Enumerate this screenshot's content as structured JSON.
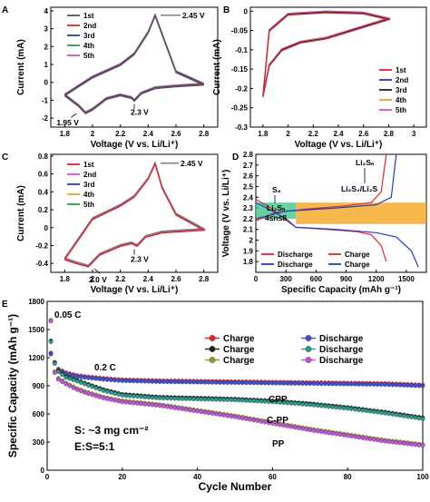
{
  "chart_data": [
    {
      "panel": "A",
      "type": "line",
      "xlabel": "Voltage (V vs. Li/Li⁺)",
      "ylabel": "Current (mA)",
      "xlim": [
        1.7,
        2.9
      ],
      "ylim": [
        -2.5,
        4.2
      ],
      "xticks": [
        1.8,
        2.0,
        2.2,
        2.4,
        2.6,
        2.8
      ],
      "yticks": [
        -2,
        -1,
        0,
        1,
        2,
        3,
        4
      ],
      "legend": [
        "1st",
        "2nd",
        "3rd",
        "4th",
        "5th"
      ],
      "colors": [
        "#555555",
        "#e8212b",
        "#1f3fbf",
        "#2a9d4a",
        "#d94fd9"
      ],
      "annotations": [
        {
          "text": "2.45 V",
          "x": 2.45,
          "y": 3.75
        },
        {
          "text": "1.95 V",
          "x": 1.95,
          "y": -1.7
        },
        {
          "text": "2.3 V",
          "x": 2.3,
          "y": -1.0
        }
      ],
      "cycle": [
        [
          1.8,
          -0.7
        ],
        [
          1.9,
          -1.3
        ],
        [
          1.95,
          -1.7
        ],
        [
          2.0,
          -1.5
        ],
        [
          2.1,
          -0.9
        ],
        [
          2.2,
          -0.7
        ],
        [
          2.28,
          -0.85
        ],
        [
          2.3,
          -1.0
        ],
        [
          2.35,
          -0.6
        ],
        [
          2.45,
          -0.3
        ],
        [
          2.6,
          -0.2
        ],
        [
          2.8,
          -0.1
        ],
        [
          2.6,
          0.6
        ],
        [
          2.5,
          2.7
        ],
        [
          2.45,
          3.75
        ],
        [
          2.4,
          2.8
        ],
        [
          2.3,
          1.6
        ],
        [
          2.2,
          1.0
        ],
        [
          2.0,
          0.3
        ],
        [
          1.8,
          -0.7
        ]
      ]
    },
    {
      "panel": "B",
      "type": "line",
      "xlabel": "Voltage (V vs. Li/Li⁺)",
      "ylabel": "Current (mA)",
      "xlim": [
        1.7,
        3.1
      ],
      "ylim": [
        -0.3,
        0.01
      ],
      "xticks": [
        1.8,
        2.0,
        2.2,
        2.4,
        2.6,
        2.8,
        3.0
      ],
      "yticks": [
        0.0,
        -0.05,
        -0.1,
        -0.15,
        -0.2,
        -0.25,
        -0.3
      ],
      "legend": [
        "1st",
        "2nd",
        "3rd",
        "4th",
        "5th"
      ],
      "colors": [
        "#e8212b",
        "#1f3fbf",
        "#222222",
        "#f0a020",
        "#d94fd9"
      ],
      "cycle": [
        [
          1.8,
          -0.22
        ],
        [
          1.85,
          -0.14
        ],
        [
          1.95,
          -0.1
        ],
        [
          2.1,
          -0.08
        ],
        [
          2.3,
          -0.07
        ],
        [
          2.5,
          -0.05
        ],
        [
          2.7,
          -0.03
        ],
        [
          2.8,
          -0.02
        ],
        [
          2.6,
          -0.005
        ],
        [
          2.3,
          -0.002
        ],
        [
          2.0,
          -0.008
        ],
        [
          1.85,
          -0.05
        ],
        [
          1.8,
          -0.22
        ]
      ]
    },
    {
      "panel": "C",
      "type": "line",
      "xlabel": "Voltage (V vs. Li/Li⁺)",
      "ylabel": "Current (mA)",
      "xlim": [
        1.7,
        2.9
      ],
      "ylim": [
        -0.5,
        0.82
      ],
      "xticks": [
        1.8,
        2.0,
        2.2,
        2.4,
        2.6,
        2.8
      ],
      "yticks": [
        -0.4,
        -0.2,
        0.0,
        0.2,
        0.4,
        0.6,
        0.8
      ],
      "legend": [
        "1st",
        "2nd",
        "3rd",
        "4th",
        "5th"
      ],
      "colors": [
        "#e8212b",
        "#d94fd9",
        "#1f3fbf",
        "#f0a020",
        "#2a9d4a"
      ],
      "annotations": [
        {
          "text": "2.45 V",
          "x": 2.45,
          "y": 0.72
        },
        {
          "text": "2.0 V",
          "x": 2.0,
          "y": -0.43
        },
        {
          "text": "2.3 V",
          "x": 2.3,
          "y": -0.2
        }
      ],
      "cycle": [
        [
          1.8,
          -0.35
        ],
        [
          1.9,
          -0.4
        ],
        [
          1.97,
          -0.43
        ],
        [
          2.05,
          -0.3
        ],
        [
          2.2,
          -0.2
        ],
        [
          2.28,
          -0.17
        ],
        [
          2.32,
          -0.2
        ],
        [
          2.38,
          -0.1
        ],
        [
          2.5,
          -0.05
        ],
        [
          2.8,
          -0.02
        ],
        [
          2.6,
          0.15
        ],
        [
          2.5,
          0.45
        ],
        [
          2.45,
          0.72
        ],
        [
          2.4,
          0.55
        ],
        [
          2.3,
          0.35
        ],
        [
          2.2,
          0.25
        ],
        [
          2.0,
          0.1
        ],
        [
          1.8,
          -0.35
        ]
      ]
    },
    {
      "panel": "D",
      "type": "line",
      "xlabel": "Specific Capacity (mAh g⁻¹)",
      "ylabel": "Voltage (V vs. Li/Li⁺)",
      "xlim": [
        0,
        1700
      ],
      "ylim": [
        1.7,
        2.8
      ],
      "xticks": [
        0,
        300,
        600,
        900,
        1200,
        1500
      ],
      "yticks": [
        1.8,
        1.9,
        2.0,
        2.1,
        2.2,
        2.3,
        2.4,
        2.5,
        2.6,
        2.7,
        2.8
      ],
      "annotations": [
        "S₈",
        "Li₂Sₙ",
        "4≤n≤8",
        "Li₂Sₙ",
        "Li₂S₂/Li₂S"
      ],
      "legend": [
        {
          "name": "Discharge",
          "color": "#e8212b"
        },
        {
          "name": "Charge",
          "color": "#e8212b"
        },
        {
          "name": "Discharge",
          "color": "#1f3fbf"
        },
        {
          "name": "Charge",
          "color": "#1f3fbf"
        }
      ],
      "bands": [
        {
          "x": [
            0,
            400
          ],
          "y": [
            2.2,
            2.35
          ],
          "color": "#3cc88a"
        },
        {
          "x": [
            400,
            1700
          ],
          "y": [
            2.15,
            2.35
          ],
          "color": "#f4a520"
        }
      ],
      "series": [
        {
          "name": "Discharge",
          "color": "#e8212b",
          "points": [
            [
              0,
              2.38
            ],
            [
              150,
              2.3
            ],
            [
              280,
              2.2
            ],
            [
              400,
              2.12
            ],
            [
              700,
              2.1
            ],
            [
              1000,
              2.08
            ],
            [
              1150,
              2.05
            ],
            [
              1250,
              1.95
            ],
            [
              1300,
              1.8
            ]
          ]
        },
        {
          "name": "Charge",
          "color": "#e8212b",
          "points": [
            [
              0,
              2.18
            ],
            [
              200,
              2.26
            ],
            [
              500,
              2.29
            ],
            [
              900,
              2.32
            ],
            [
              1150,
              2.35
            ],
            [
              1250,
              2.45
            ],
            [
              1300,
              2.8
            ]
          ]
        },
        {
          "name": "Discharge",
          "color": "#1f3fbf",
          "points": [
            [
              0,
              2.35
            ],
            [
              150,
              2.28
            ],
            [
              300,
              2.2
            ],
            [
              400,
              2.12
            ],
            [
              800,
              2.1
            ],
            [
              1200,
              2.07
            ],
            [
              1400,
              2.03
            ],
            [
              1550,
              1.9
            ],
            [
              1620,
              1.75
            ]
          ]
        },
        {
          "name": "Charge",
          "color": "#1f3fbf",
          "points": [
            [
              0,
              2.2
            ],
            [
              300,
              2.27
            ],
            [
              800,
              2.3
            ],
            [
              1200,
              2.33
            ],
            [
              1350,
              2.4
            ],
            [
              1400,
              2.8
            ]
          ]
        }
      ]
    },
    {
      "panel": "E",
      "type": "scatter",
      "xlabel": "Cycle Number",
      "ylabel": "Specific Capacity (mAh g⁻¹)",
      "xlim": [
        0,
        100
      ],
      "ylim": [
        0,
        1800
      ],
      "xticks": [
        0,
        20,
        40,
        60,
        80,
        100
      ],
      "yticks": [
        0,
        300,
        600,
        900,
        1200,
        1500,
        1800
      ],
      "annotations": [
        "0.05 C",
        "0.2 C",
        "CPP",
        "C-PP",
        "PP",
        "S: ~3 mg cm⁻²",
        "E:S=5:1"
      ],
      "legend": [
        {
          "name": "Charge",
          "color": "#e8212b"
        },
        {
          "name": "Discharge",
          "color": "#3d4fd9"
        },
        {
          "name": "Charge",
          "color": "#222222"
        },
        {
          "name": "Discharge",
          "color": "#2a9d8a"
        },
        {
          "name": "Charge",
          "color": "#8aa020"
        },
        {
          "name": "Discharge",
          "color": "#c850e0"
        }
      ],
      "series": [
        {
          "name": "CPP",
          "colors": [
            "#e8212b",
            "#3d4fd9"
          ],
          "points": [
            [
              1,
              1250
            ],
            [
              2,
              1150
            ],
            [
              3,
              1080
            ],
            [
              5,
              1040
            ],
            [
              8,
              1010
            ],
            [
              10,
              1000
            ],
            [
              15,
              980
            ],
            [
              20,
              965
            ],
            [
              30,
              955
            ],
            [
              40,
              950
            ],
            [
              50,
              945
            ],
            [
              60,
              940
            ],
            [
              70,
              935
            ],
            [
              80,
              930
            ],
            [
              90,
              925
            ],
            [
              100,
              910
            ]
          ]
        },
        {
          "name": "C-PP",
          "colors": [
            "#222222",
            "#2a9d8a"
          ],
          "points": [
            [
              1,
              1380
            ],
            [
              2,
              1150
            ],
            [
              3,
              1060
            ],
            [
              5,
              1000
            ],
            [
              8,
              960
            ],
            [
              10,
              930
            ],
            [
              15,
              860
            ],
            [
              20,
              810
            ],
            [
              30,
              780
            ],
            [
              40,
              770
            ],
            [
              50,
              760
            ],
            [
              60,
              740
            ],
            [
              70,
              710
            ],
            [
              80,
              670
            ],
            [
              90,
              620
            ],
            [
              100,
              560
            ]
          ]
        },
        {
          "name": "PP",
          "colors": [
            "#8aa020",
            "#c850e0"
          ],
          "points": [
            [
              1,
              1600
            ],
            [
              2,
              1050
            ],
            [
              3,
              980
            ],
            [
              5,
              930
            ],
            [
              8,
              870
            ],
            [
              10,
              840
            ],
            [
              15,
              780
            ],
            [
              20,
              740
            ],
            [
              30,
              700
            ],
            [
              40,
              640
            ],
            [
              50,
              580
            ],
            [
              60,
              510
            ],
            [
              70,
              440
            ],
            [
              80,
              380
            ],
            [
              90,
              320
            ],
            [
              100,
              275
            ]
          ]
        }
      ]
    }
  ]
}
